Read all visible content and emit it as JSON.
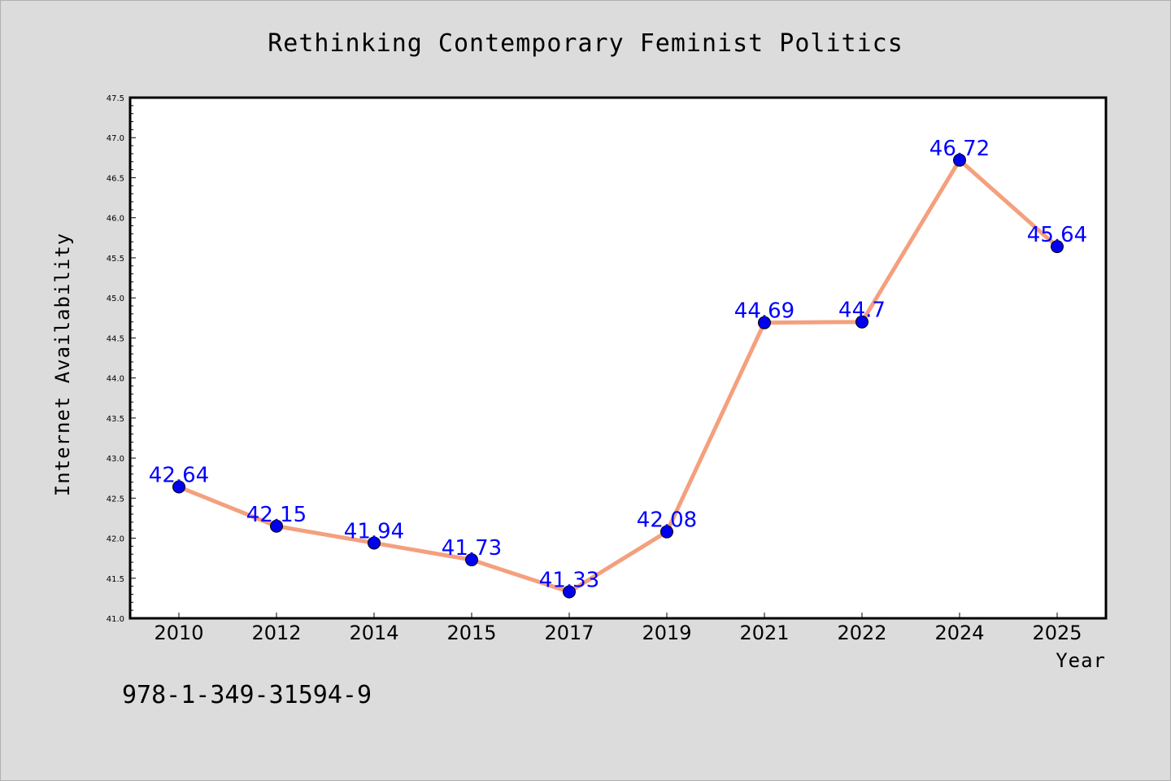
{
  "chart_data": {
    "type": "line",
    "title": "Rethinking Contemporary Feminist Politics",
    "xlabel": "Year",
    "ylabel": "Internet Availability",
    "categories": [
      "2010",
      "2012",
      "2014",
      "2015",
      "2017",
      "2019",
      "2021",
      "2022",
      "2024",
      "2025"
    ],
    "series": [
      {
        "values": [
          42.64,
          42.15,
          41.94,
          41.73,
          41.33,
          42.08,
          44.69,
          44.7,
          46.72,
          45.64
        ],
        "data_labels": [
          "42.64",
          "42.15",
          "41.94",
          "41.73",
          "41.33",
          "42.08",
          "44.69",
          "44.7",
          "46.72",
          "45.64"
        ]
      }
    ],
    "ylim": [
      41.0,
      47.5
    ],
    "yticks": [
      "41.0",
      "41.5",
      "42.0",
      "42.5",
      "43.0",
      "43.5",
      "44.0",
      "44.5",
      "45.0",
      "45.5",
      "46.0",
      "46.5",
      "47.0",
      "47.5"
    ],
    "grid": false,
    "legend": "none",
    "colors": {
      "line": "#f4a07e",
      "marker": "#0000ee",
      "data_label": "#0000ff",
      "background": "#dcdcdc",
      "plot_background": "#ffffff"
    }
  },
  "footer": {
    "isbn": "978-1-349-31594-9"
  }
}
